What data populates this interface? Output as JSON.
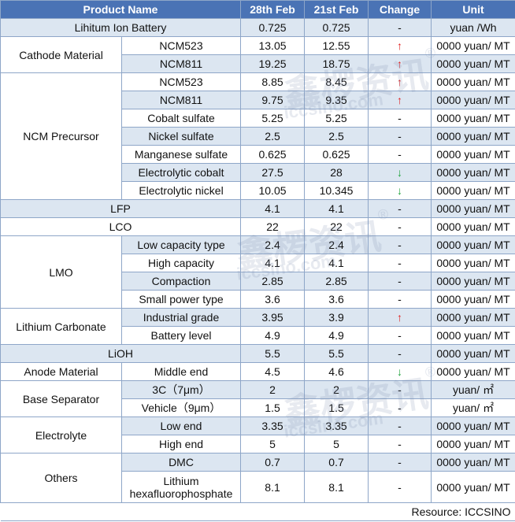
{
  "headers": {
    "product": "Product Name",
    "d1": "28th Feb",
    "d2": "21st Feb",
    "change": "Change",
    "unit": "Unit"
  },
  "glyphs": {
    "up": "↑",
    "down": "↓",
    "flat": "-"
  },
  "groups": {
    "battery": "Lihitum Ion Battery",
    "cathode": "Cathode Material",
    "ncm": "NCM Precursor",
    "lfp": "LFP",
    "lco": "LCO",
    "lmo": "LMO",
    "lc": "Lithium Carbonate",
    "lioh": "LiOH",
    "anode": "Anode Material",
    "sep": "Base Separator",
    "elec": "Electrolyte",
    "others": "Others"
  },
  "rows": [
    {
      "sub": "",
      "v1": "0.725",
      "v2": "0.725",
      "chg": "flat",
      "unit": "yuan /Wh"
    },
    {
      "sub": "NCM523",
      "v1": "13.05",
      "v2": "12.55",
      "chg": "up",
      "unit": "0000 yuan/ MT"
    },
    {
      "sub": "NCM811",
      "v1": "19.25",
      "v2": "18.75",
      "chg": "up",
      "unit": "0000 yuan/ MT"
    },
    {
      "sub": "NCM523",
      "v1": "8.85",
      "v2": "8.45",
      "chg": "up",
      "unit": "0000 yuan/ MT"
    },
    {
      "sub": "NCM811",
      "v1": "9.75",
      "v2": "9.35",
      "chg": "up",
      "unit": "0000 yuan/ MT"
    },
    {
      "sub": "Cobalt sulfate",
      "v1": "5.25",
      "v2": "5.25",
      "chg": "flat",
      "unit": "0000 yuan/ MT"
    },
    {
      "sub": "Nickel sulfate",
      "v1": "2.5",
      "v2": "2.5",
      "chg": "flat",
      "unit": "0000 yuan/ MT"
    },
    {
      "sub": "Manganese sulfate",
      "v1": "0.625",
      "v2": "0.625",
      "chg": "flat",
      "unit": "0000 yuan/ MT"
    },
    {
      "sub": "Electrolytic cobalt",
      "v1": "27.5",
      "v2": "28",
      "chg": "down",
      "unit": "0000 yuan/ MT"
    },
    {
      "sub": "Electrolytic nickel",
      "v1": "10.05",
      "v2": "10.345",
      "chg": "down",
      "unit": "0000 yuan/ MT"
    },
    {
      "sub": "",
      "v1": "4.1",
      "v2": "4.1",
      "chg": "flat",
      "unit": "0000 yuan/ MT"
    },
    {
      "sub": "",
      "v1": "22",
      "v2": "22",
      "chg": "flat",
      "unit": "0000 yuan/ MT"
    },
    {
      "sub": "Low capacity type",
      "v1": "2.4",
      "v2": "2.4",
      "chg": "flat",
      "unit": "0000 yuan/ MT"
    },
    {
      "sub": "High capacity",
      "v1": "4.1",
      "v2": "4.1",
      "chg": "flat",
      "unit": "0000 yuan/ MT"
    },
    {
      "sub": "Compaction",
      "v1": "2.85",
      "v2": "2.85",
      "chg": "flat",
      "unit": "0000 yuan/ MT"
    },
    {
      "sub": "Small power type",
      "v1": "3.6",
      "v2": "3.6",
      "chg": "flat",
      "unit": "0000 yuan/ MT"
    },
    {
      "sub": "Industrial grade",
      "v1": "3.95",
      "v2": "3.9",
      "chg": "up",
      "unit": "0000 yuan/ MT"
    },
    {
      "sub": "Battery level",
      "v1": "4.9",
      "v2": "4.9",
      "chg": "flat",
      "unit": "0000 yuan/ MT"
    },
    {
      "sub": "",
      "v1": "5.5",
      "v2": "5.5",
      "chg": "flat",
      "unit": "0000 yuan/ MT"
    },
    {
      "sub": "Middle end",
      "v1": "4.5",
      "v2": "4.6",
      "chg": "down",
      "unit": "0000 yuan/ MT"
    },
    {
      "sub": "3C（7μm）",
      "v1": "2",
      "v2": "2",
      "chg": "flat",
      "unit": "yuan/ ㎡"
    },
    {
      "sub": "Vehicle（9μm）",
      "v1": "1.5",
      "v2": "1.5",
      "chg": "flat",
      "unit": "yuan/ ㎡"
    },
    {
      "sub": "Low end",
      "v1": "3.35",
      "v2": "3.35",
      "chg": "flat",
      "unit": "0000 yuan/ MT"
    },
    {
      "sub": "High end",
      "v1": "5",
      "v2": "5",
      "chg": "flat",
      "unit": "0000 yuan/ MT"
    },
    {
      "sub": "DMC",
      "v1": "0.7",
      "v2": "0.7",
      "chg": "flat",
      "unit": "0000 yuan/ MT"
    },
    {
      "sub": "Lithium hexafluorophosphate",
      "v1": "8.1",
      "v2": "8.1",
      "chg": "flat",
      "unit": "0000 yuan/ MT"
    }
  ],
  "footer": "Resource: ICCSINO",
  "watermark": {
    "cn": "鑫椤资讯",
    "latin": "iccsino.com",
    "mark": "®"
  }
}
